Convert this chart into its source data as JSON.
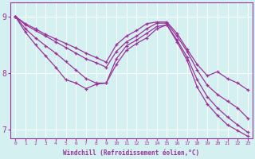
{
  "xlabel": "Windchill (Refroidissement éolien,°C)",
  "bg_color": "#d4f0f0",
  "line_color": "#993399",
  "xlim": [
    -0.5,
    23.5
  ],
  "ylim": [
    6.85,
    9.25
  ],
  "yticks": [
    7,
    8,
    9
  ],
  "xticks": [
    0,
    1,
    2,
    3,
    4,
    5,
    6,
    7,
    8,
    9,
    10,
    11,
    12,
    13,
    14,
    15,
    16,
    17,
    18,
    19,
    20,
    21,
    22,
    23
  ],
  "series": [
    [
      9.0,
      8.87,
      8.78,
      8.68,
      8.6,
      8.52,
      8.44,
      8.35,
      8.27,
      8.19,
      8.5,
      8.65,
      8.75,
      8.87,
      8.9,
      8.9,
      8.7,
      8.42,
      8.15,
      7.95,
      8.02,
      7.9,
      7.82,
      7.7
    ],
    [
      9.0,
      8.85,
      8.75,
      8.65,
      8.55,
      8.45,
      8.35,
      8.25,
      8.18,
      8.1,
      8.38,
      8.55,
      8.65,
      8.78,
      8.88,
      8.88,
      8.65,
      8.38,
      8.05,
      7.78,
      7.62,
      7.5,
      7.38,
      7.2
    ],
    [
      9.0,
      8.78,
      8.62,
      8.48,
      8.35,
      8.2,
      8.05,
      7.9,
      7.82,
      7.82,
      8.25,
      8.48,
      8.58,
      8.7,
      8.82,
      8.85,
      8.58,
      8.28,
      7.88,
      7.58,
      7.38,
      7.22,
      7.08,
      6.95
    ],
    [
      9.0,
      8.72,
      8.5,
      8.3,
      8.1,
      7.88,
      7.82,
      7.72,
      7.8,
      7.82,
      8.15,
      8.4,
      8.52,
      8.62,
      8.78,
      8.85,
      8.55,
      8.22,
      7.75,
      7.45,
      7.25,
      7.08,
      6.98,
      6.88
    ]
  ]
}
